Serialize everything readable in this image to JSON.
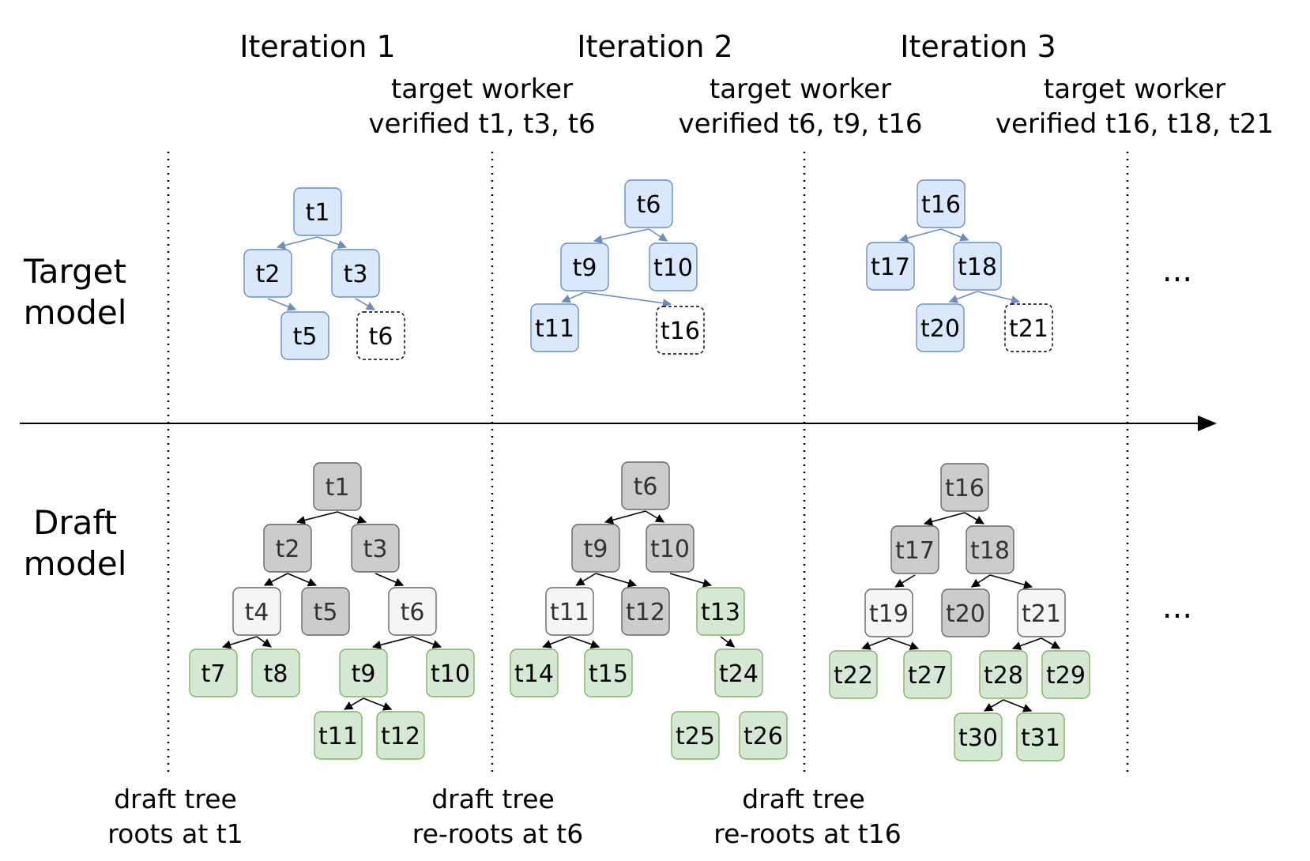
{
  "colors": {
    "verified_fill": "#dae8fc",
    "verified_stroke": "#6c8ebf",
    "gray_fill": "#cccccc",
    "gray_stroke": "#666666",
    "light_fill": "#f5f5f5",
    "light_stroke": "#666666",
    "green_fill": "#d5e8d4",
    "green_stroke": "#82b366",
    "pending_fill": "#ffffff",
    "pending_stroke": "#000000",
    "target_edge": "#6c8ebf",
    "draft_edge": "#000000"
  },
  "row_labels": {
    "target": [
      "Target",
      "model"
    ],
    "draft": [
      "Draft",
      "model"
    ]
  },
  "ellipsis": "...",
  "iterations": [
    {
      "title": "Iteration 1",
      "verified": [
        "target worker",
        "verified t1, t3, t6"
      ],
      "caption": [
        "draft tree",
        "roots at t1"
      ]
    },
    {
      "title": "Iteration 2",
      "verified": [
        "target worker",
        "verified t6, t9, t16"
      ],
      "caption": [
        "draft tree",
        "re-roots at t6"
      ]
    },
    {
      "title": "Iteration 3",
      "verified": [
        "target worker",
        "verified t16, t18, t21"
      ],
      "caption": [
        "draft tree",
        "re-roots at t16"
      ]
    }
  ],
  "target_trees": [
    {
      "nodes": [
        {
          "id": "t1",
          "style": "verified"
        },
        {
          "id": "t2",
          "style": "verified"
        },
        {
          "id": "t3",
          "style": "verified"
        },
        {
          "id": "t5",
          "style": "verified"
        },
        {
          "id": "t6",
          "style": "pending"
        }
      ],
      "edges": [
        [
          "t1",
          "t2"
        ],
        [
          "t1",
          "t3"
        ],
        [
          "t2",
          "t5"
        ],
        [
          "t3",
          "t6"
        ]
      ]
    },
    {
      "nodes": [
        {
          "id": "t6",
          "style": "verified"
        },
        {
          "id": "t9",
          "style": "verified"
        },
        {
          "id": "t10",
          "style": "verified"
        },
        {
          "id": "t11",
          "style": "verified"
        },
        {
          "id": "t16",
          "style": "pending"
        }
      ],
      "edges": [
        [
          "t6",
          "t9"
        ],
        [
          "t6",
          "t10"
        ],
        [
          "t9",
          "t11"
        ],
        [
          "t9",
          "t16"
        ]
      ]
    },
    {
      "nodes": [
        {
          "id": "t16",
          "style": "verified"
        },
        {
          "id": "t17",
          "style": "verified"
        },
        {
          "id": "t18",
          "style": "verified"
        },
        {
          "id": "t20",
          "style": "verified"
        },
        {
          "id": "t21",
          "style": "pending"
        }
      ],
      "edges": [
        [
          "t16",
          "t17"
        ],
        [
          "t16",
          "t18"
        ],
        [
          "t18",
          "t20"
        ],
        [
          "t18",
          "t21"
        ]
      ]
    }
  ],
  "draft_trees": [
    {
      "nodes": [
        {
          "id": "t1",
          "style": "gray"
        },
        {
          "id": "t2",
          "style": "gray"
        },
        {
          "id": "t3",
          "style": "gray"
        },
        {
          "id": "t4",
          "style": "light"
        },
        {
          "id": "t5",
          "style": "gray"
        },
        {
          "id": "t6",
          "style": "light"
        },
        {
          "id": "t7",
          "style": "green"
        },
        {
          "id": "t8",
          "style": "green"
        },
        {
          "id": "t9",
          "style": "green"
        },
        {
          "id": "t10",
          "style": "green"
        },
        {
          "id": "t11",
          "style": "green"
        },
        {
          "id": "t12",
          "style": "green"
        }
      ],
      "edges": [
        [
          "t1",
          "t2"
        ],
        [
          "t1",
          "t3"
        ],
        [
          "t2",
          "t4"
        ],
        [
          "t2",
          "t5"
        ],
        [
          "t3",
          "t6"
        ],
        [
          "t4",
          "t7"
        ],
        [
          "t4",
          "t8"
        ],
        [
          "t6",
          "t9"
        ],
        [
          "t6",
          "t10"
        ],
        [
          "t9",
          "t11"
        ],
        [
          "t9",
          "t12"
        ]
      ]
    },
    {
      "nodes": [
        {
          "id": "t6",
          "style": "gray"
        },
        {
          "id": "t9",
          "style": "gray"
        },
        {
          "id": "t10",
          "style": "gray"
        },
        {
          "id": "t11",
          "style": "light"
        },
        {
          "id": "t12",
          "style": "gray"
        },
        {
          "id": "t13",
          "style": "green"
        },
        {
          "id": "t14",
          "style": "green"
        },
        {
          "id": "t15",
          "style": "green"
        },
        {
          "id": "t24",
          "style": "green"
        },
        {
          "id": "t25",
          "style": "green"
        },
        {
          "id": "t26",
          "style": "green"
        }
      ],
      "edges": [
        [
          "t6",
          "t9"
        ],
        [
          "t6",
          "t10"
        ],
        [
          "t9",
          "t11"
        ],
        [
          "t9",
          "t12"
        ],
        [
          "t10",
          "t13"
        ],
        [
          "t11",
          "t14"
        ],
        [
          "t11",
          "t15"
        ],
        [
          "t13",
          "t24"
        ]
      ]
    },
    {
      "nodes": [
        {
          "id": "t16",
          "style": "gray"
        },
        {
          "id": "t17",
          "style": "gray"
        },
        {
          "id": "t18",
          "style": "gray"
        },
        {
          "id": "t19",
          "style": "light"
        },
        {
          "id": "t20",
          "style": "gray"
        },
        {
          "id": "t21",
          "style": "light"
        },
        {
          "id": "t22",
          "style": "green"
        },
        {
          "id": "t27",
          "style": "green"
        },
        {
          "id": "t28",
          "style": "green"
        },
        {
          "id": "t29",
          "style": "green"
        },
        {
          "id": "t30",
          "style": "green"
        },
        {
          "id": "t31",
          "style": "green"
        }
      ],
      "edges": [
        [
          "t16",
          "t17"
        ],
        [
          "t16",
          "t18"
        ],
        [
          "t17",
          "t19"
        ],
        [
          "t18",
          "t20"
        ],
        [
          "t18",
          "t21"
        ],
        [
          "t19",
          "t22"
        ],
        [
          "t19",
          "t27"
        ],
        [
          "t21",
          "t28"
        ],
        [
          "t21",
          "t29"
        ],
        [
          "t28",
          "t30"
        ],
        [
          "t28",
          "t31"
        ]
      ]
    }
  ]
}
